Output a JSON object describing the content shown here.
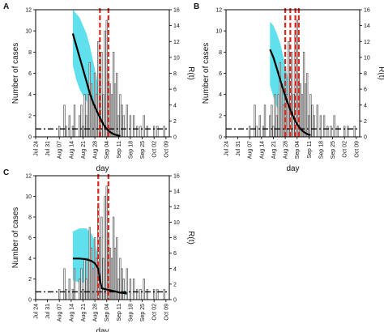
{
  "chart_data": [
    {
      "type": "bar",
      "panel_label": "A",
      "xlabel": "day",
      "ylabel": "Number of cases",
      "y2label": "R(t)",
      "ylim": [
        0,
        12
      ],
      "y2lim": [
        0,
        16
      ],
      "yticks": [
        0,
        2,
        4,
        6,
        8,
        10,
        12
      ],
      "y2ticks": [
        0,
        2,
        4,
        6,
        8,
        10,
        12,
        14,
        16
      ],
      "tick_labels": [
        "Jul 24",
        "Jul 31",
        "Aug 07",
        "Aug 14",
        "Aug 21",
        "Aug 28",
        "Sep 04",
        "Sep 11",
        "Sep 18",
        "Sep 25",
        "Oct 02",
        "Oct 09"
      ],
      "tick_days": [
        0,
        7,
        14,
        21,
        28,
        35,
        42,
        49,
        56,
        63,
        70,
        77
      ],
      "x_range": [
        0,
        79
      ],
      "cases": {
        "days": [
          14,
          17,
          18,
          20,
          22,
          23,
          26,
          27,
          28,
          29,
          30,
          31,
          32,
          33,
          34,
          35,
          36,
          37,
          38,
          39,
          40,
          41,
          42,
          43,
          44,
          45,
          46,
          47,
          48,
          49,
          50,
          51,
          52,
          54,
          56,
          58,
          60,
          62,
          64,
          66,
          70,
          72,
          76
        ],
        "values": [
          1,
          3,
          1,
          2,
          1,
          3,
          2,
          3,
          1,
          4,
          2,
          4,
          7,
          5,
          3,
          6,
          4,
          9,
          6,
          8,
          4,
          10,
          11,
          6,
          5,
          4,
          8,
          5,
          6,
          2,
          4,
          3,
          2,
          3,
          2,
          2,
          1,
          1,
          2,
          1,
          1,
          1,
          1
        ]
      },
      "r_threshold": 1,
      "intervention_days": [
        38,
        43
      ],
      "rt_estimate": {
        "days": [
          22,
          24,
          26,
          28,
          30,
          32,
          34,
          36,
          38,
          40,
          42,
          44,
          46,
          48,
          50
        ],
        "values": [
          13,
          11.5,
          10,
          8.5,
          7,
          5.5,
          4.3,
          3.3,
          2.4,
          1.6,
          1.0,
          0.6,
          0.35,
          0.2,
          0.1
        ]
      },
      "rt_ci_upper": {
        "days": [
          22,
          24,
          26,
          28,
          30,
          32,
          34,
          36,
          38,
          40,
          42
        ],
        "values": [
          16,
          15.5,
          15,
          14,
          13,
          11.5,
          9.5,
          7.5,
          5,
          3.2,
          2
        ]
      },
      "rt_ci_lower": {
        "days": [
          22,
          24,
          26,
          28,
          30,
          32,
          34,
          36,
          38,
          40,
          42
        ],
        "values": [
          9,
          7.2,
          6,
          5.2,
          4.5,
          3.5,
          2.4,
          1.5,
          0.9,
          0.5,
          0.3
        ]
      },
      "colors": {
        "bar_fill": "#ffffff",
        "bar_stroke": "#555555",
        "rt_line": "#000000",
        "ci_band": "#5fe0ec",
        "intervention": "#e0271c",
        "threshold": "#000000"
      }
    },
    {
      "type": "bar",
      "panel_label": "B",
      "xlabel": "day",
      "ylabel": "Number of cases",
      "y2label": "R(t)",
      "ylim": [
        0,
        12
      ],
      "y2lim": [
        0,
        16
      ],
      "yticks": [
        0,
        2,
        4,
        6,
        8,
        10,
        12
      ],
      "y2ticks": [
        0,
        2,
        4,
        6,
        8,
        10,
        12,
        14,
        16
      ],
      "tick_labels": [
        "Jul 24",
        "Jul 31",
        "Aug 07",
        "Aug 14",
        "Aug 21",
        "Aug 28",
        "Sep 04",
        "Sep 11",
        "Sep 18",
        "Sep 25",
        "Oct 02",
        "Oct 09"
      ],
      "tick_days": [
        0,
        7,
        14,
        21,
        28,
        35,
        42,
        49,
        56,
        63,
        70,
        77
      ],
      "x_range": [
        0,
        79
      ],
      "cases": {
        "days": [
          14,
          17,
          18,
          20,
          22,
          23,
          26,
          27,
          28,
          29,
          30,
          31,
          32,
          33,
          34,
          35,
          36,
          37,
          38,
          39,
          40,
          41,
          42,
          43,
          44,
          45,
          46,
          47,
          48,
          49,
          50,
          51,
          52,
          54,
          56,
          58,
          60,
          62,
          64,
          66,
          70,
          72,
          76
        ],
        "values": [
          1,
          3,
          1,
          2,
          1,
          3,
          2,
          3,
          1,
          4,
          2,
          4,
          7,
          5,
          3,
          6,
          4,
          9,
          6,
          8,
          4,
          10,
          11,
          6,
          5,
          4,
          8,
          5,
          6,
          2,
          4,
          3,
          2,
          3,
          2,
          2,
          1,
          1,
          2,
          1,
          1,
          1,
          1
        ]
      },
      "r_threshold": 1,
      "intervention_days": [
        35,
        38,
        41,
        43
      ],
      "rt_estimate": {
        "days": [
          26,
          28,
          30,
          32,
          34,
          36,
          38,
          40,
          42,
          44,
          46,
          48,
          50
        ],
        "values": [
          11,
          10,
          8.6,
          7.2,
          5.8,
          4.5,
          3.4,
          2.4,
          1.6,
          1.0,
          0.6,
          0.35,
          0.2
        ]
      },
      "rt_ci_upper": {
        "days": [
          26,
          28,
          30,
          32,
          34,
          36,
          38,
          40,
          42
        ],
        "values": [
          14.5,
          14,
          13,
          11.8,
          10,
          8,
          6,
          4,
          2.5
        ]
      },
      "rt_ci_lower": {
        "days": [
          26,
          28,
          30,
          32,
          34,
          36,
          38,
          40,
          42
        ],
        "values": [
          6.5,
          5,
          3.8,
          2.8,
          2,
          1.4,
          0.9,
          0.5,
          0.3
        ]
      },
      "colors": {
        "bar_fill": "#ffffff",
        "bar_stroke": "#555555",
        "rt_line": "#000000",
        "ci_band": "#5fe0ec",
        "intervention": "#e0271c",
        "threshold": "#000000"
      }
    },
    {
      "type": "bar",
      "panel_label": "C",
      "xlabel": "day",
      "ylabel": "Number of cases",
      "y2label": "R(t)",
      "ylim": [
        0,
        12
      ],
      "y2lim": [
        0,
        16
      ],
      "yticks": [
        0,
        2,
        4,
        6,
        8,
        10,
        12
      ],
      "y2ticks": [
        0,
        2,
        4,
        6,
        8,
        10,
        12,
        14,
        16
      ],
      "tick_labels": [
        "Jul 24",
        "Jul 31",
        "Aug 07",
        "Aug 14",
        "Aug 21",
        "Aug 28",
        "Sep 04",
        "Sep 11",
        "Sep 18",
        "Sep 25",
        "Oct 02",
        "Oct 09"
      ],
      "tick_days": [
        0,
        7,
        14,
        21,
        28,
        35,
        42,
        49,
        56,
        63,
        70,
        77
      ],
      "x_range": [
        0,
        79
      ],
      "cases": {
        "days": [
          14,
          17,
          18,
          20,
          22,
          23,
          26,
          27,
          28,
          29,
          30,
          31,
          32,
          33,
          34,
          35,
          36,
          37,
          38,
          39,
          40,
          41,
          42,
          43,
          44,
          45,
          46,
          47,
          48,
          49,
          50,
          51,
          52,
          54,
          56,
          58,
          60,
          62,
          64,
          66,
          70,
          72,
          76
        ],
        "values": [
          1,
          3,
          1,
          2,
          1,
          3,
          2,
          3,
          1,
          4,
          2,
          4,
          7,
          5,
          3,
          6,
          4,
          9,
          6,
          8,
          4,
          10,
          11,
          6,
          5,
          4,
          8,
          5,
          6,
          2,
          4,
          3,
          2,
          3,
          2,
          2,
          1,
          1,
          2,
          1,
          1,
          1,
          1
        ]
      },
      "r_threshold": 1,
      "intervention_days": [
        37,
        43
      ],
      "rt_estimate": {
        "days": [
          22,
          26,
          30,
          33,
          35,
          37,
          38,
          39,
          40,
          42,
          44,
          46,
          48,
          50,
          52,
          54
        ],
        "values": [
          5.3,
          5.3,
          5.2,
          5.0,
          4.7,
          4.0,
          2.5,
          1.5,
          1.4,
          1.3,
          1.2,
          1.1,
          1.0,
          0.9,
          0.85,
          0.8
        ]
      },
      "rt_ci_upper": {
        "days": [
          22,
          26,
          30,
          33,
          35,
          37,
          38,
          40,
          44,
          48,
          52,
          54
        ],
        "values": [
          8.8,
          9.2,
          9.2,
          8.5,
          7.5,
          5.5,
          2.2,
          1.8,
          1.6,
          1.4,
          1.2,
          1.1
        ]
      },
      "rt_ci_lower": {
        "days": [
          22,
          26,
          30,
          33,
          35,
          37,
          38,
          40,
          44,
          48,
          52,
          54
        ],
        "values": [
          2.5,
          2.2,
          2.2,
          2.4,
          2.5,
          2.3,
          0.9,
          0.9,
          0.8,
          0.7,
          0.6,
          0.6
        ]
      },
      "colors": {
        "bar_fill": "#ffffff",
        "bar_stroke": "#555555",
        "rt_line": "#000000",
        "ci_band": "#5fe0ec",
        "intervention": "#e0271c",
        "threshold": "#000000"
      }
    }
  ]
}
